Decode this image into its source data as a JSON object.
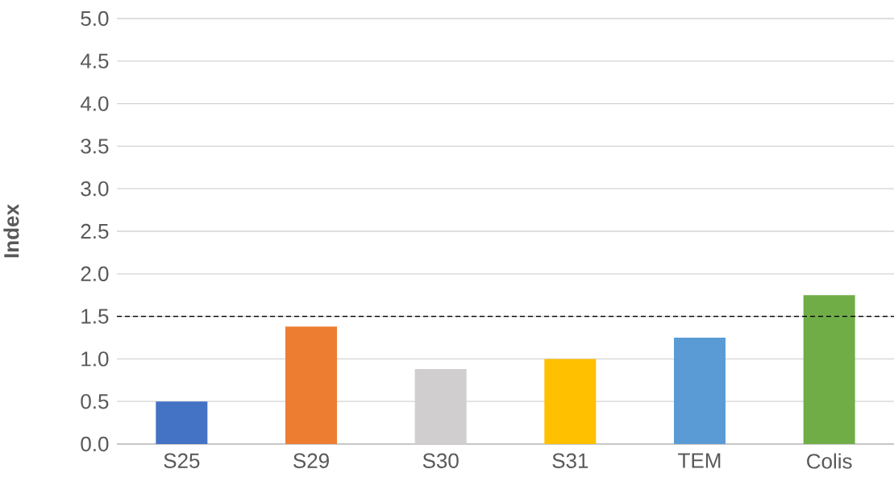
{
  "chart_data": {
    "type": "bar",
    "ylabel": "Index",
    "categories": [
      "S25",
      "S29",
      "S30",
      "S31",
      "TEM",
      "Colis"
    ],
    "values": [
      0.5,
      1.38,
      0.88,
      1.0,
      1.25,
      1.75
    ],
    "colors": [
      "#4472c4",
      "#ed7d31",
      "#d0cece",
      "#ffc000",
      "#5b9bd5",
      "#70ad47"
    ],
    "ylim": [
      0,
      5
    ],
    "yticks": [
      {
        "value": 0,
        "label": "0.0"
      },
      {
        "value": 0.5,
        "label": "0.5"
      },
      {
        "value": 1,
        "label": "1.0"
      },
      {
        "value": 1.5,
        "label": "1.5"
      },
      {
        "value": 2,
        "label": "2.0"
      },
      {
        "value": 2.5,
        "label": "2.5"
      },
      {
        "value": 3,
        "label": "3.0"
      },
      {
        "value": 3.5,
        "label": "3.5"
      },
      {
        "value": 4,
        "label": "4.0"
      },
      {
        "value": 4.5,
        "label": "4.5"
      },
      {
        "value": 5,
        "label": "5.0"
      }
    ],
    "ref_lines": [
      {
        "axis": "y",
        "value": 1.5,
        "color": "#000000",
        "line_style": "dashed"
      }
    ],
    "grid": "y"
  }
}
